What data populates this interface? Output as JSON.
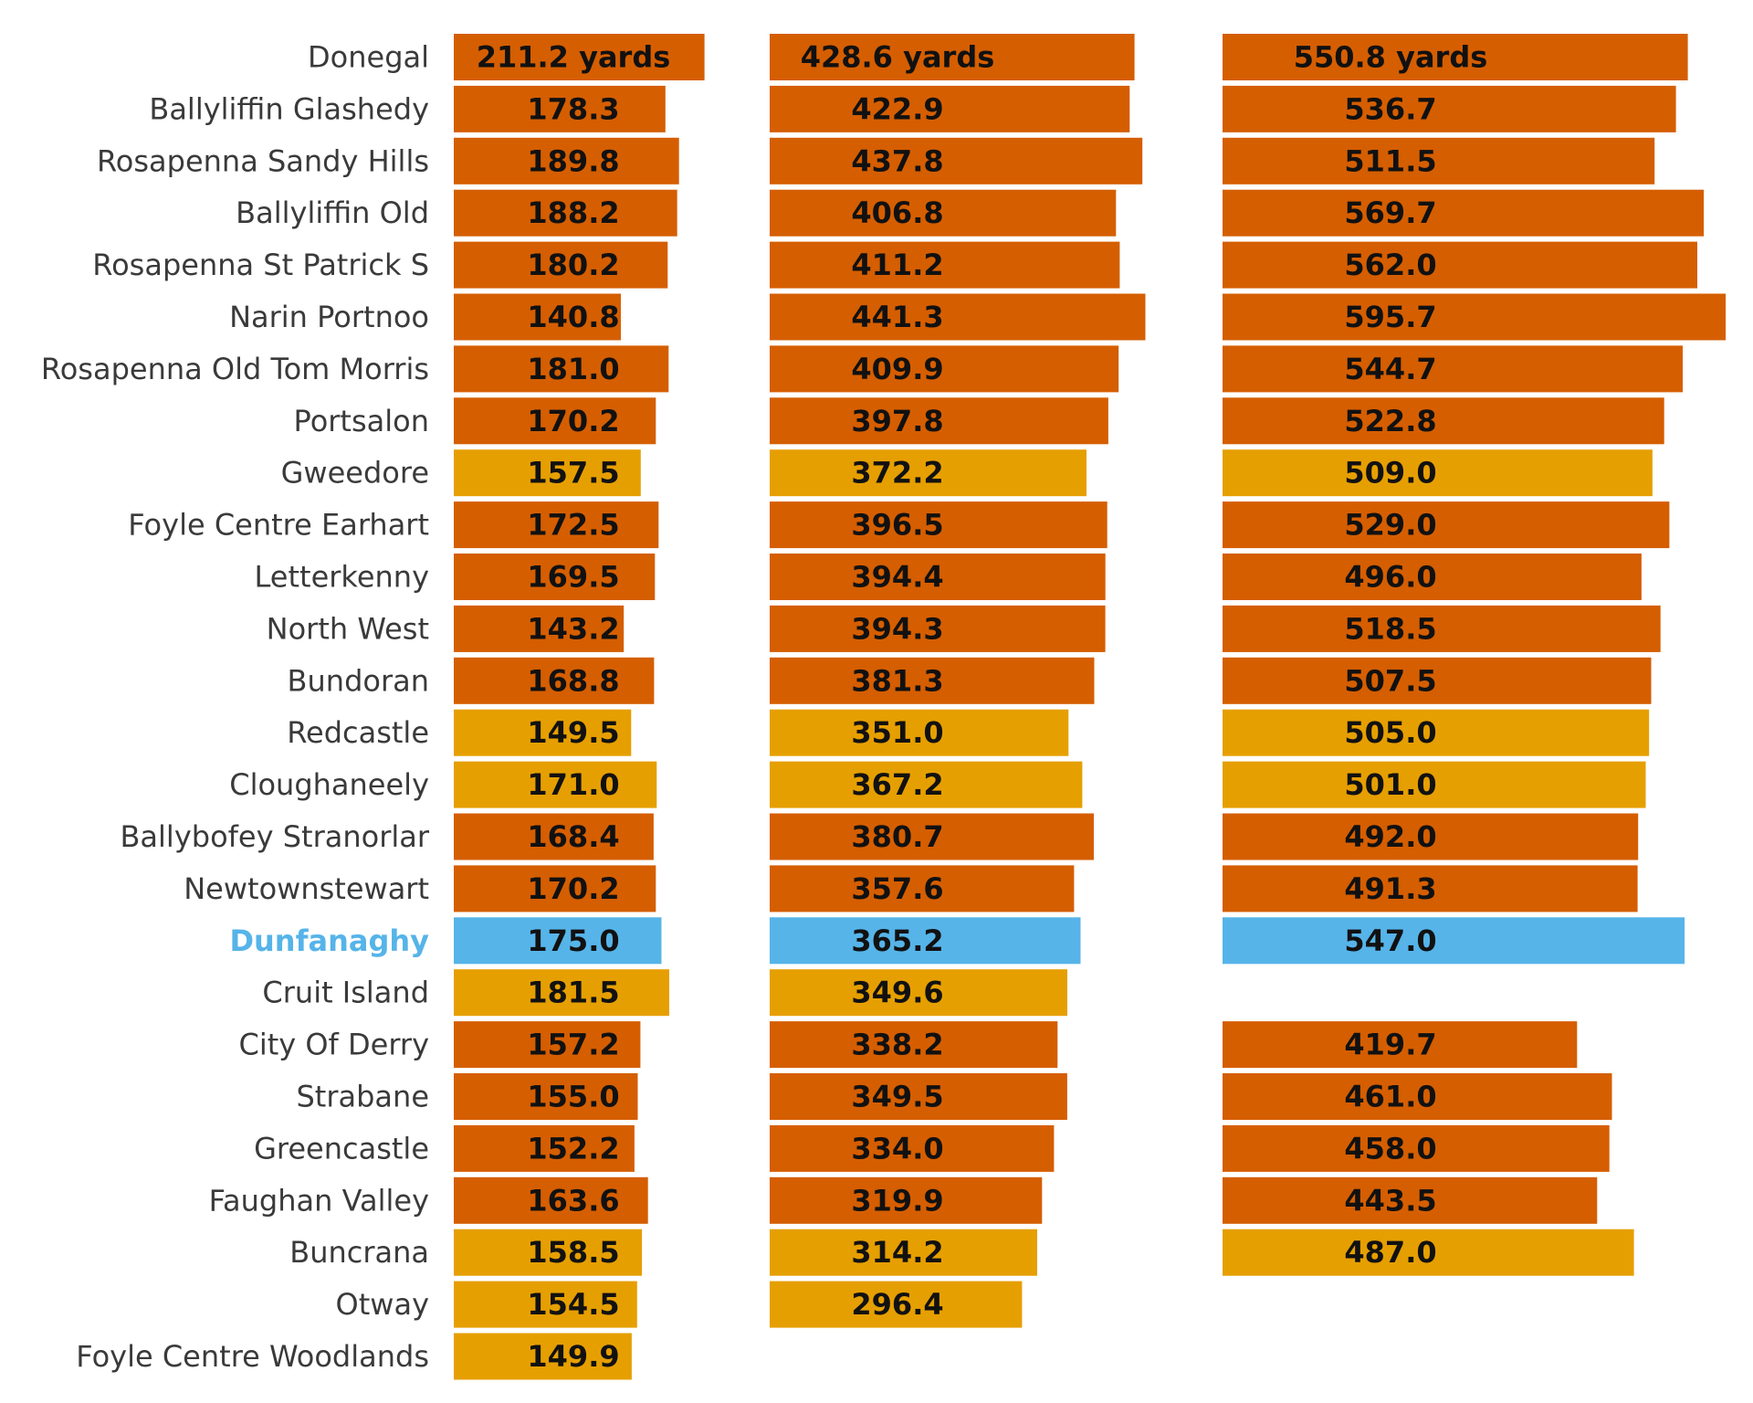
{
  "chart_data": {
    "type": "bar",
    "orientation": "horizontal",
    "title": "",
    "unit_suffix": " yards",
    "highlight_course": "Dunfanaghy",
    "colors": {
      "orange": "#d55e00",
      "gold": "#e69f00",
      "highlight": "#56b4e9",
      "text": "#111111",
      "label": "#3a3a3a"
    },
    "categories": [
      "Donegal",
      "Ballyliffin Glashedy",
      "Rosapenna Sandy Hills",
      "Ballyliffin Old",
      "Rosapenna St Patrick S",
      "Narin Portnoo",
      "Rosapenna Old Tom Morris",
      "Portsalon",
      "Gweedore",
      "Foyle Centre Earhart",
      "Letterkenny",
      "North West",
      "Bundoran",
      "Redcastle",
      "Cloughaneely",
      "Ballybofey Stranorlar",
      "Newtownstewart",
      "Dunfanaghy",
      "Cruit Island",
      "City Of Derry",
      "Strabane",
      "Greencastle",
      "Faughan Valley",
      "Buncrana",
      "Otway",
      "Foyle Centre Woodlands"
    ],
    "row_colors": [
      "orange",
      "orange",
      "orange",
      "orange",
      "orange",
      "orange",
      "orange",
      "orange",
      "gold",
      "orange",
      "orange",
      "orange",
      "orange",
      "gold",
      "gold",
      "orange",
      "orange",
      "highlight",
      "gold",
      "orange",
      "orange",
      "orange",
      "orange",
      "gold",
      "gold",
      "gold"
    ],
    "series": [
      {
        "values": [
          211.2,
          178.3,
          189.8,
          188.2,
          180.2,
          140.8,
          181.0,
          170.2,
          157.5,
          172.5,
          169.5,
          143.2,
          168.8,
          149.5,
          171.0,
          168.4,
          170.2,
          175.0,
          181.5,
          157.2,
          155.0,
          152.2,
          163.6,
          158.5,
          154.5,
          149.9
        ],
        "labels": [
          "211.2 yards",
          "178.3",
          "189.8",
          "188.2",
          "180.2",
          "140.8",
          "181.0",
          "170.2",
          "157.5",
          "172.5",
          "169.5",
          "143.2",
          "168.8",
          "149.5",
          "171.0",
          "168.4",
          "170.2",
          "175.0",
          "181.5",
          "157.2",
          "155.0",
          "152.2",
          "163.6",
          "158.5",
          "154.5",
          "149.9"
        ]
      },
      {
        "values": [
          428.6,
          422.9,
          437.8,
          406.8,
          411.2,
          441.3,
          409.9,
          397.8,
          372.2,
          396.5,
          394.4,
          394.3,
          381.3,
          351.0,
          367.2,
          380.7,
          357.6,
          365.2,
          349.6,
          338.2,
          349.5,
          334.0,
          319.9,
          314.2,
          296.4,
          null
        ],
        "labels": [
          "428.6 yards",
          "422.9",
          "437.8",
          "406.8",
          "411.2",
          "441.3",
          "409.9",
          "397.8",
          "372.2",
          "396.5",
          "394.4",
          "394.3",
          "381.3",
          "351.0",
          "367.2",
          "380.7",
          "357.6",
          "365.2",
          "349.6",
          "338.2",
          "349.5",
          "334.0",
          "319.9",
          "314.2",
          "296.4",
          null
        ]
      },
      {
        "values": [
          550.8,
          536.7,
          511.5,
          569.7,
          562.0,
          595.7,
          544.7,
          522.8,
          509.0,
          529.0,
          496.0,
          518.5,
          507.5,
          505.0,
          501.0,
          492.0,
          491.3,
          547.0,
          null,
          419.7,
          461.0,
          458.0,
          443.5,
          487.0,
          null,
          null
        ],
        "labels": [
          "550.8 yards",
          "536.7",
          "511.5",
          "569.7",
          "562.0",
          "595.7",
          "544.7",
          "522.8",
          "509.0",
          "529.0",
          "496.0",
          "518.5",
          "507.5",
          "505.0",
          "501.0",
          "492.0",
          "491.3",
          "547.0",
          null,
          "419.7",
          "461.0",
          "458.0",
          "443.5",
          "487.0",
          null,
          null
        ]
      }
    ],
    "grid": false,
    "axes_visible": false
  }
}
